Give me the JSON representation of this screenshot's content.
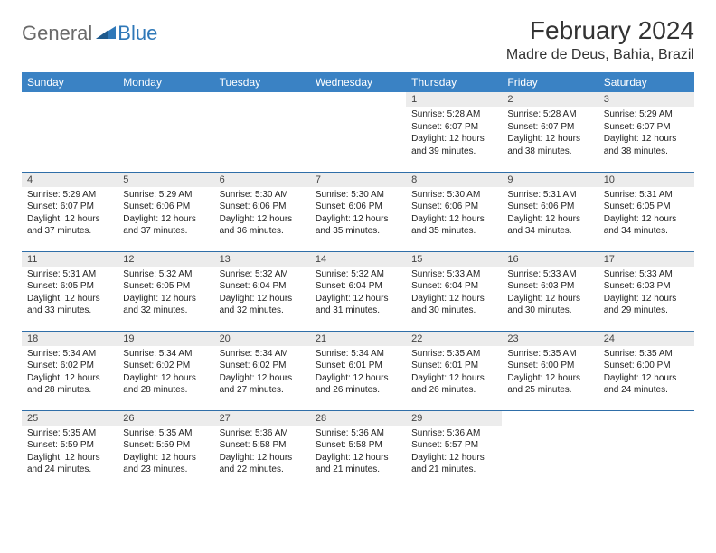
{
  "logo": {
    "text1": "General",
    "text2": "Blue"
  },
  "title": "February 2024",
  "location": "Madre de Deus, Bahia, Brazil",
  "colors": {
    "header_bg": "#3a82c4",
    "header_text": "#ffffff",
    "daynum_bg": "#ececec",
    "border": "#2f6ea8",
    "logo_gray": "#6a6a6a",
    "logo_blue": "#2f78b8"
  },
  "day_headers": [
    "Sunday",
    "Monday",
    "Tuesday",
    "Wednesday",
    "Thursday",
    "Friday",
    "Saturday"
  ],
  "weeks": [
    [
      {
        "empty": true
      },
      {
        "empty": true
      },
      {
        "empty": true
      },
      {
        "empty": true
      },
      {
        "num": "1",
        "sunrise": "5:28 AM",
        "sunset": "6:07 PM",
        "daylight": "12 hours and 39 minutes."
      },
      {
        "num": "2",
        "sunrise": "5:28 AM",
        "sunset": "6:07 PM",
        "daylight": "12 hours and 38 minutes."
      },
      {
        "num": "3",
        "sunrise": "5:29 AM",
        "sunset": "6:07 PM",
        "daylight": "12 hours and 38 minutes."
      }
    ],
    [
      {
        "num": "4",
        "sunrise": "5:29 AM",
        "sunset": "6:07 PM",
        "daylight": "12 hours and 37 minutes."
      },
      {
        "num": "5",
        "sunrise": "5:29 AM",
        "sunset": "6:06 PM",
        "daylight": "12 hours and 37 minutes."
      },
      {
        "num": "6",
        "sunrise": "5:30 AM",
        "sunset": "6:06 PM",
        "daylight": "12 hours and 36 minutes."
      },
      {
        "num": "7",
        "sunrise": "5:30 AM",
        "sunset": "6:06 PM",
        "daylight": "12 hours and 35 minutes."
      },
      {
        "num": "8",
        "sunrise": "5:30 AM",
        "sunset": "6:06 PM",
        "daylight": "12 hours and 35 minutes."
      },
      {
        "num": "9",
        "sunrise": "5:31 AM",
        "sunset": "6:06 PM",
        "daylight": "12 hours and 34 minutes."
      },
      {
        "num": "10",
        "sunrise": "5:31 AM",
        "sunset": "6:05 PM",
        "daylight": "12 hours and 34 minutes."
      }
    ],
    [
      {
        "num": "11",
        "sunrise": "5:31 AM",
        "sunset": "6:05 PM",
        "daylight": "12 hours and 33 minutes."
      },
      {
        "num": "12",
        "sunrise": "5:32 AM",
        "sunset": "6:05 PM",
        "daylight": "12 hours and 32 minutes."
      },
      {
        "num": "13",
        "sunrise": "5:32 AM",
        "sunset": "6:04 PM",
        "daylight": "12 hours and 32 minutes."
      },
      {
        "num": "14",
        "sunrise": "5:32 AM",
        "sunset": "6:04 PM",
        "daylight": "12 hours and 31 minutes."
      },
      {
        "num": "15",
        "sunrise": "5:33 AM",
        "sunset": "6:04 PM",
        "daylight": "12 hours and 30 minutes."
      },
      {
        "num": "16",
        "sunrise": "5:33 AM",
        "sunset": "6:03 PM",
        "daylight": "12 hours and 30 minutes."
      },
      {
        "num": "17",
        "sunrise": "5:33 AM",
        "sunset": "6:03 PM",
        "daylight": "12 hours and 29 minutes."
      }
    ],
    [
      {
        "num": "18",
        "sunrise": "5:34 AM",
        "sunset": "6:02 PM",
        "daylight": "12 hours and 28 minutes."
      },
      {
        "num": "19",
        "sunrise": "5:34 AM",
        "sunset": "6:02 PM",
        "daylight": "12 hours and 28 minutes."
      },
      {
        "num": "20",
        "sunrise": "5:34 AM",
        "sunset": "6:02 PM",
        "daylight": "12 hours and 27 minutes."
      },
      {
        "num": "21",
        "sunrise": "5:34 AM",
        "sunset": "6:01 PM",
        "daylight": "12 hours and 26 minutes."
      },
      {
        "num": "22",
        "sunrise": "5:35 AM",
        "sunset": "6:01 PM",
        "daylight": "12 hours and 26 minutes."
      },
      {
        "num": "23",
        "sunrise": "5:35 AM",
        "sunset": "6:00 PM",
        "daylight": "12 hours and 25 minutes."
      },
      {
        "num": "24",
        "sunrise": "5:35 AM",
        "sunset": "6:00 PM",
        "daylight": "12 hours and 24 minutes."
      }
    ],
    [
      {
        "num": "25",
        "sunrise": "5:35 AM",
        "sunset": "5:59 PM",
        "daylight": "12 hours and 24 minutes."
      },
      {
        "num": "26",
        "sunrise": "5:35 AM",
        "sunset": "5:59 PM",
        "daylight": "12 hours and 23 minutes."
      },
      {
        "num": "27",
        "sunrise": "5:36 AM",
        "sunset": "5:58 PM",
        "daylight": "12 hours and 22 minutes."
      },
      {
        "num": "28",
        "sunrise": "5:36 AM",
        "sunset": "5:58 PM",
        "daylight": "12 hours and 21 minutes."
      },
      {
        "num": "29",
        "sunrise": "5:36 AM",
        "sunset": "5:57 PM",
        "daylight": "12 hours and 21 minutes."
      },
      {
        "empty": true
      },
      {
        "empty": true
      }
    ]
  ],
  "labels": {
    "sunrise": "Sunrise: ",
    "sunset": "Sunset: ",
    "daylight": "Daylight: "
  }
}
